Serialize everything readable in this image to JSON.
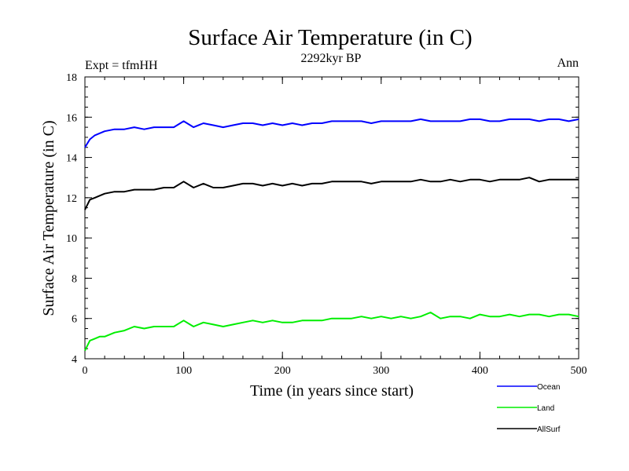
{
  "chart_data": {
    "type": "line",
    "title": "Surface Air Temperature (in C)",
    "subtitle": "2292kyr BP",
    "left_note": "Expt = tfmHH",
    "right_note": "Ann",
    "xlabel": "Time (in years since start)",
    "ylabel": "Surface Air Temperature (in C)",
    "xlim": [
      0,
      500
    ],
    "ylim": [
      4,
      18
    ],
    "xticks": [
      0,
      100,
      200,
      300,
      400,
      500
    ],
    "yticks": [
      4,
      6,
      8,
      10,
      12,
      14,
      16,
      18
    ],
    "x_minor_step": 20,
    "y_minor_step": 0.5,
    "legend_position": "bottom-right",
    "series": [
      {
        "name": "Ocean",
        "color": "#0000ff",
        "x": [
          0,
          5,
          10,
          15,
          20,
          30,
          40,
          50,
          60,
          70,
          80,
          90,
          100,
          110,
          120,
          130,
          140,
          150,
          160,
          170,
          180,
          190,
          200,
          210,
          220,
          230,
          240,
          250,
          260,
          270,
          280,
          290,
          300,
          310,
          320,
          330,
          340,
          350,
          360,
          370,
          380,
          390,
          400,
          410,
          420,
          430,
          440,
          450,
          460,
          470,
          480,
          490,
          500
        ],
        "values": [
          14.5,
          14.9,
          15.1,
          15.2,
          15.3,
          15.4,
          15.4,
          15.5,
          15.4,
          15.5,
          15.5,
          15.5,
          15.8,
          15.5,
          15.7,
          15.6,
          15.5,
          15.6,
          15.7,
          15.7,
          15.6,
          15.7,
          15.6,
          15.7,
          15.6,
          15.7,
          15.7,
          15.8,
          15.8,
          15.8,
          15.8,
          15.7,
          15.8,
          15.8,
          15.8,
          15.8,
          15.9,
          15.8,
          15.8,
          15.8,
          15.8,
          15.9,
          15.9,
          15.8,
          15.8,
          15.9,
          15.9,
          15.9,
          15.8,
          15.9,
          15.9,
          15.8,
          15.9
        ]
      },
      {
        "name": "Land",
        "color": "#00ee00",
        "x": [
          0,
          5,
          10,
          15,
          20,
          30,
          40,
          50,
          60,
          70,
          80,
          90,
          100,
          110,
          120,
          130,
          140,
          150,
          160,
          170,
          180,
          190,
          200,
          210,
          220,
          230,
          240,
          250,
          260,
          270,
          280,
          290,
          300,
          310,
          320,
          330,
          340,
          350,
          360,
          370,
          380,
          390,
          400,
          410,
          420,
          430,
          440,
          450,
          460,
          470,
          480,
          490,
          500
        ],
        "values": [
          4.4,
          4.9,
          5.0,
          5.1,
          5.1,
          5.3,
          5.4,
          5.6,
          5.5,
          5.6,
          5.6,
          5.6,
          5.9,
          5.6,
          5.8,
          5.7,
          5.6,
          5.7,
          5.8,
          5.9,
          5.8,
          5.9,
          5.8,
          5.8,
          5.9,
          5.9,
          5.9,
          6.0,
          6.0,
          6.0,
          6.1,
          6.0,
          6.1,
          6.0,
          6.1,
          6.0,
          6.1,
          6.3,
          6.0,
          6.1,
          6.1,
          6.0,
          6.2,
          6.1,
          6.1,
          6.2,
          6.1,
          6.2,
          6.2,
          6.1,
          6.2,
          6.2,
          6.1
        ]
      },
      {
        "name": "AllSurf",
        "color": "#000000",
        "x": [
          0,
          5,
          10,
          15,
          20,
          30,
          40,
          50,
          60,
          70,
          80,
          90,
          100,
          110,
          120,
          130,
          140,
          150,
          160,
          170,
          180,
          190,
          200,
          210,
          220,
          230,
          240,
          250,
          260,
          270,
          280,
          290,
          300,
          310,
          320,
          330,
          340,
          350,
          360,
          370,
          380,
          390,
          400,
          410,
          420,
          430,
          440,
          450,
          460,
          470,
          480,
          490,
          500
        ],
        "values": [
          11.4,
          11.9,
          12.0,
          12.1,
          12.2,
          12.3,
          12.3,
          12.4,
          12.4,
          12.4,
          12.5,
          12.5,
          12.8,
          12.5,
          12.7,
          12.5,
          12.5,
          12.6,
          12.7,
          12.7,
          12.6,
          12.7,
          12.6,
          12.7,
          12.6,
          12.7,
          12.7,
          12.8,
          12.8,
          12.8,
          12.8,
          12.7,
          12.8,
          12.8,
          12.8,
          12.8,
          12.9,
          12.8,
          12.8,
          12.9,
          12.8,
          12.9,
          12.9,
          12.8,
          12.9,
          12.9,
          12.9,
          13.0,
          12.8,
          12.9,
          12.9,
          12.9,
          12.9
        ]
      }
    ]
  }
}
